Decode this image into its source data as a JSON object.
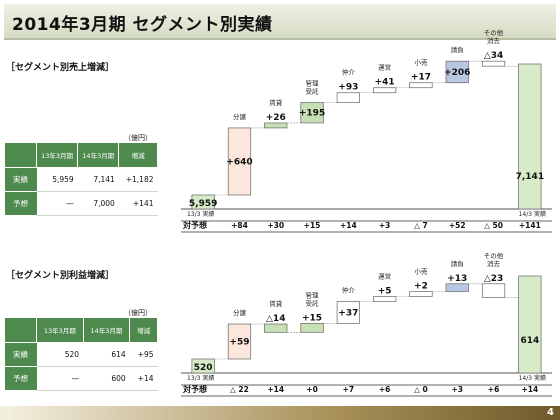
{
  "title": "2014年3月期 セグメント別実績",
  "page_number": "4",
  "sections": [
    {
      "heading": "［セグメント別売上増減］",
      "unit": "（億円）",
      "table": {
        "headers": [
          "",
          "13年3月期",
          "14年3月期",
          "増減"
        ],
        "rows": [
          {
            "label": "実績",
            "cells": [
              "5,959",
              "7,141",
              "+1,182"
            ]
          },
          {
            "label": "予想",
            "cells": [
              "—",
              "7,000",
              "+141"
            ]
          }
        ]
      }
    },
    {
      "heading": "［セグメント別利益増減］",
      "unit": "（億円）",
      "table": {
        "headers": [
          "",
          "13年3月期",
          "14年3月期",
          "増減"
        ],
        "rows": [
          {
            "label": "実績",
            "cells": [
              "520",
              "614",
              "+95"
            ]
          },
          {
            "label": "予想",
            "cells": [
              "—",
              "600",
              "+14"
            ]
          }
        ]
      }
    }
  ],
  "colors": {
    "start": "#d7ebc8",
    "end": "#d7ebc8",
    "up": "#fbe7dc",
    "positive": "#c7dfb5",
    "neutral": "#ffffff",
    "blue": "#b8c8e2",
    "green_header": "#4e8a4e"
  },
  "chart_data": [
    {
      "type": "bar",
      "subtype": "waterfall",
      "categories": [
        "13/3 実績",
        "分譲",
        "賃貸",
        "管理受託",
        "仲介",
        "運営",
        "小売",
        "請負",
        "その他消去",
        "14/3 実績"
      ],
      "bar_labels": [
        "",
        "分譲",
        "賃貸",
        "管理\n受託",
        "仲介",
        "運営",
        "小売",
        "請負",
        "その他\n消去",
        ""
      ],
      "values": [
        5959,
        640,
        26,
        195,
        93,
        41,
        17,
        206,
        -34,
        7141
      ],
      "value_labels": [
        "5,959",
        "+640",
        "+26",
        "+195",
        "+93",
        "+41",
        "+17",
        "+206",
        "△34",
        "7,141"
      ],
      "styles": [
        "start",
        "up",
        "positive",
        "positive",
        "neutral",
        "neutral",
        "neutral",
        "blue",
        "neutral",
        "end"
      ],
      "row_label": "対予想",
      "vs_forecast": [
        "+84",
        "+30",
        "+15",
        "+14",
        "+3",
        "△ 7",
        "+52",
        "△ 50",
        "+141"
      ]
    },
    {
      "type": "bar",
      "subtype": "waterfall",
      "categories": [
        "13/3 実績",
        "分譲",
        "賃貸",
        "管理受託",
        "仲介",
        "運営",
        "小売",
        "請負",
        "その他消去",
        "14/3 実績"
      ],
      "bar_labels": [
        "",
        "分譲",
        "賃貸",
        "管理\n受託",
        "仲介",
        "運営",
        "小売",
        "請負",
        "その他\n消去",
        ""
      ],
      "values": [
        520,
        59,
        -14,
        15,
        37,
        5,
        2,
        13,
        -23,
        614
      ],
      "value_labels": [
        "520",
        "+59",
        "△14",
        "+15",
        "+37",
        "+5",
        "+2",
        "+13",
        "△23",
        "614"
      ],
      "styles": [
        "start",
        "up",
        "positive",
        "positive",
        "neutral",
        "neutral",
        "neutral",
        "blue",
        "neutral",
        "end"
      ],
      "row_label": "対予想",
      "vs_forecast": [
        "△ 22",
        "+14",
        "+0",
        "+7",
        "+6",
        "△ 0",
        "+3",
        "+6",
        "+14"
      ]
    }
  ]
}
